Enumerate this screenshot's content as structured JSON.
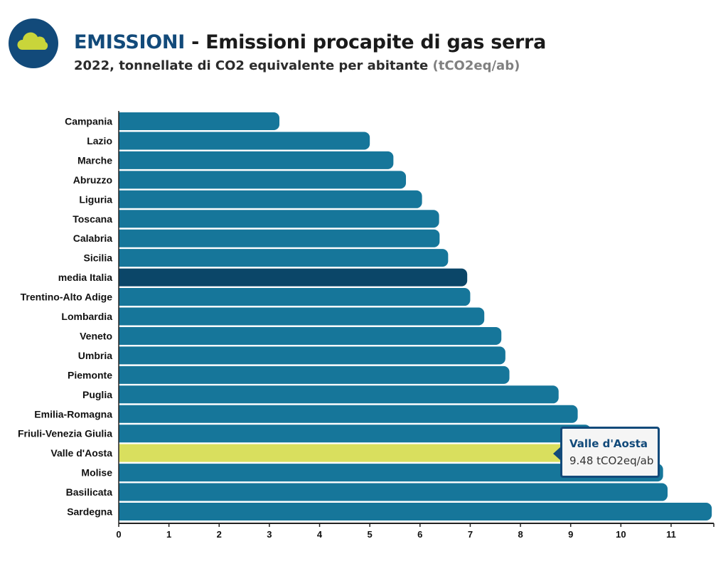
{
  "header": {
    "title_accent": "EMISSIONI",
    "title_rest": " - Emissioni procapite di gas serra",
    "subtitle_main": "2022, tonnellate di CO2 equivalente per abitante ",
    "subtitle_unit": "(tCO2eq/ab)",
    "logo_icon": "cloud-icon"
  },
  "colors": {
    "bar": "#16769a",
    "highlight_average": "#0b4668",
    "highlight_selected": "#d9df5e",
    "accent": "#124a7a"
  },
  "tooltip": {
    "name": "Valle d'Aosta",
    "value": "9.48 tCO2eq/ab"
  },
  "chart_data": {
    "type": "bar",
    "orientation": "horizontal",
    "categories": [
      "Campania",
      "Lazio",
      "Marche",
      "Abruzzo",
      "Liguria",
      "Toscana",
      "Calabria",
      "Sicilia",
      "media Italia",
      "Trentino-Alto Adige",
      "Lombardia",
      "Veneto",
      "Umbria",
      "Piemonte",
      "Puglia",
      "Emilia-Romagna",
      "Friuli-Venezia Giulia",
      "Valle d'Aosta",
      "Molise",
      "Basilicata",
      "Sardegna"
    ],
    "values": [
      3.2,
      5.0,
      5.47,
      5.72,
      6.04,
      6.38,
      6.39,
      6.56,
      6.94,
      7.0,
      7.28,
      7.62,
      7.7,
      7.78,
      8.76,
      9.14,
      9.4,
      9.48,
      10.84,
      10.93,
      11.81
    ],
    "highlight": {
      "media Italia": "average",
      "Valle d'Aosta": "selected"
    },
    "xlim": [
      0,
      11.85
    ],
    "xticks": [
      0,
      1,
      2,
      3,
      4,
      5,
      6,
      7,
      8,
      9,
      10,
      11
    ],
    "title": "",
    "xlabel": "",
    "ylabel": "",
    "grid": false,
    "legend": "none"
  }
}
